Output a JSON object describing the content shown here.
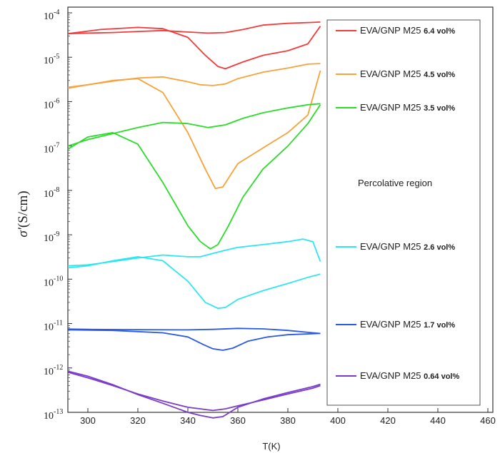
{
  "chart_data": {
    "type": "line",
    "title": "",
    "xlabel": "T(K)",
    "ylabel_sym": "σ′",
    "ylabel_units": "(S/cm)",
    "xlim": [
      292,
      462
    ],
    "ylim": [
      1e-13,
      0.0001
    ],
    "yscale": "log",
    "x_ticks": [
      300,
      320,
      340,
      360,
      380,
      400,
      420,
      440,
      460
    ],
    "y_ticks": [
      {
        "mant": "10",
        "exp": "-4",
        "value": 0.0001
      },
      {
        "mant": "10",
        "exp": "-5",
        "value": 1e-05
      },
      {
        "mant": "10",
        "exp": "-6",
        "value": 1e-06
      },
      {
        "mant": "10",
        "exp": "-7",
        "value": 1e-07
      },
      {
        "mant": "10",
        "exp": "-8",
        "value": 1e-08
      },
      {
        "mant": "10",
        "exp": "-9",
        "value": 1e-09
      },
      {
        "mant": "10",
        "exp": "-10",
        "value": 1e-10
      },
      {
        "mant": "10",
        "exp": "-11",
        "value": 1e-11
      },
      {
        "mant": "10",
        "exp": "-12",
        "value": 1e-12
      },
      {
        "mant": "10",
        "exp": "-13",
        "value": 1e-13
      }
    ],
    "annotation": "Percolative region",
    "legend_position": "right",
    "series": [
      {
        "name": "EVA/GNP M25",
        "vol": "6.4 vol%",
        "color": "#f23b3b",
        "segments": [
          {
            "x": [
              292,
              300,
              310,
              320,
              330,
              340,
              348,
              355,
              362,
              370,
              380,
              390,
              393
            ],
            "y": [
              3.4e-05,
              3.5e-05,
              3.6e-05,
              3.8e-05,
              4e-05,
              3.7e-05,
              3.5e-05,
              3.6e-05,
              4.2e-05,
              5.3e-05,
              5.8e-05,
              6.1e-05,
              6.2e-05
            ]
          },
          {
            "x": [
              292,
              305,
              320,
              330,
              340,
              347,
              352,
              355,
              362,
              370,
              380,
              388,
              393
            ],
            "y": [
              3.4e-05,
              4.2e-05,
              4.7e-05,
              4.4e-05,
              2.8e-05,
              1.1e-05,
              6.2e-06,
              5.5e-06,
              7.8e-06,
              1.1e-05,
              1.4e-05,
              2e-05,
              5e-05
            ]
          }
        ]
      },
      {
        "name": "EVA/GNP M25",
        "vol": "4.5 vol%",
        "color": "#f7a23a",
        "segments": [
          {
            "x": [
              292,
              300,
              310,
              320,
              330,
              340,
              345,
              350,
              355,
              360,
              370,
              380,
              388,
              393
            ],
            "y": [
              2e-06,
              2.4e-06,
              2.9e-06,
              3.4e-06,
              3.6e-06,
              2.8e-06,
              2.4e-06,
              2.3e-06,
              2.5e-06,
              3.3e-06,
              4.6e-06,
              5.7e-06,
              7e-06,
              7.2e-06
            ]
          },
          {
            "x": [
              292,
              300,
              310,
              320,
              330,
              340,
              347,
              351,
              354,
              360,
              370,
              380,
              388,
              393
            ],
            "y": [
              2.1e-06,
              2.4e-06,
              3e-06,
              3.3e-06,
              1.6e-06,
              2e-07,
              3e-08,
              1.1e-08,
              1.2e-08,
              4e-08,
              9e-08,
              2e-07,
              5e-07,
              5e-06
            ]
          }
        ]
      },
      {
        "name": "EVA/GNP M25",
        "vol": "3.5 vol%",
        "color": "#2bdc2b",
        "segments": [
          {
            "x": [
              292,
              300,
              310,
              320,
              330,
              340,
              348,
              355,
              362,
              370,
              380,
              388,
              393
            ],
            "y": [
              1e-07,
              1.4e-07,
              1.9e-07,
              2.6e-07,
              3.4e-07,
              3.2e-07,
              2.6e-07,
              3e-07,
              4.2e-07,
              5.6e-07,
              7.2e-07,
              8.5e-07,
              9e-07
            ]
          },
          {
            "x": [
              292,
              300,
              310,
              320,
              330,
              340,
              345,
              349,
              352,
              356,
              362,
              370,
              380,
              388,
              393
            ],
            "y": [
              8.5e-08,
              1.6e-07,
              2e-07,
              1.1e-07,
              1.5e-08,
              1.6e-09,
              7e-10,
              4.8e-10,
              6e-10,
              1.5e-09,
              7e-09,
              3e-08,
              1e-07,
              3.2e-07,
              8.5e-07
            ]
          }
        ]
      },
      {
        "name": "EVA/GNP M25",
        "vol": "2.6 vol%",
        "color": "#2ee6f0",
        "segments": [
          {
            "x": [
              292,
              300,
              310,
              320,
              330,
              340,
              345,
              350,
              355,
              360,
              370,
              380,
              386,
              390,
              393
            ],
            "y": [
              2e-10,
              2.1e-10,
              2.5e-10,
              3e-10,
              3.5e-10,
              3.2e-10,
              3.2e-10,
              3.8e-10,
              4.5e-10,
              5.2e-10,
              6e-10,
              7e-10,
              8e-10,
              7e-10,
              2.5e-10
            ]
          },
          {
            "x": [
              292,
              300,
              310,
              320,
              330,
              340,
              347,
              352,
              355,
              360,
              370,
              380,
              388,
              393
            ],
            "y": [
              1.8e-10,
              2e-10,
              2.6e-10,
              3.2e-10,
              2.6e-10,
              9e-11,
              3e-11,
              2.2e-11,
              2.3e-11,
              3.5e-11,
              5.5e-11,
              8e-11,
              1.1e-10,
              1.3e-10
            ]
          }
        ]
      },
      {
        "name": "EVA/GNP M25",
        "vol": "1.7 vol%",
        "color": "#2b59e6",
        "segments": [
          {
            "x": [
              292,
              300,
              320,
              340,
              350,
              360,
              370,
              380,
              390,
              393
            ],
            "y": [
              7.5e-12,
              7.4e-12,
              7.3e-12,
              7.2e-12,
              7.4e-12,
              7.8e-12,
              7.6e-12,
              7e-12,
              6.2e-12,
              6e-12
            ]
          },
          {
            "x": [
              292,
              310,
              330,
              340,
              346,
              350,
              354,
              358,
              364,
              372,
              380,
              393
            ],
            "y": [
              7.2e-12,
              7e-12,
              6.2e-12,
              5e-12,
              3.4e-12,
              2.7e-12,
              2.5e-12,
              2.8e-12,
              4e-12,
              5e-12,
              5.6e-12,
              6e-12
            ]
          }
        ]
      },
      {
        "name": "EVA/GNP M25",
        "vol": "0.64 vol%",
        "color": "#7a3cc9",
        "segments": [
          {
            "x": [
              292,
              300,
              310,
              320,
              330,
              340,
              350,
              355,
              360,
              370,
              380,
              390,
              393
            ],
            "y": [
              8e-13,
              6e-13,
              4e-13,
              2.6e-13,
              1.8e-13,
              1.3e-13,
              1.1e-13,
              1.2e-13,
              1.4e-13,
              1.9e-13,
              2.6e-13,
              3.5e-13,
              4e-13
            ]
          },
          {
            "x": [
              292,
              300,
              310,
              320,
              330,
              340,
              345,
              350,
              354,
              360,
              370,
              380,
              390,
              393
            ],
            "y": [
              8.5e-13,
              6.5e-13,
              4.2e-13,
              2.5e-13,
              1.6e-13,
              1e-13,
              8.5e-14,
              7.5e-14,
              8e-14,
              1.3e-13,
              2e-13,
              2.8e-13,
              3.8e-13,
              4.3e-13
            ]
          }
        ]
      }
    ]
  }
}
